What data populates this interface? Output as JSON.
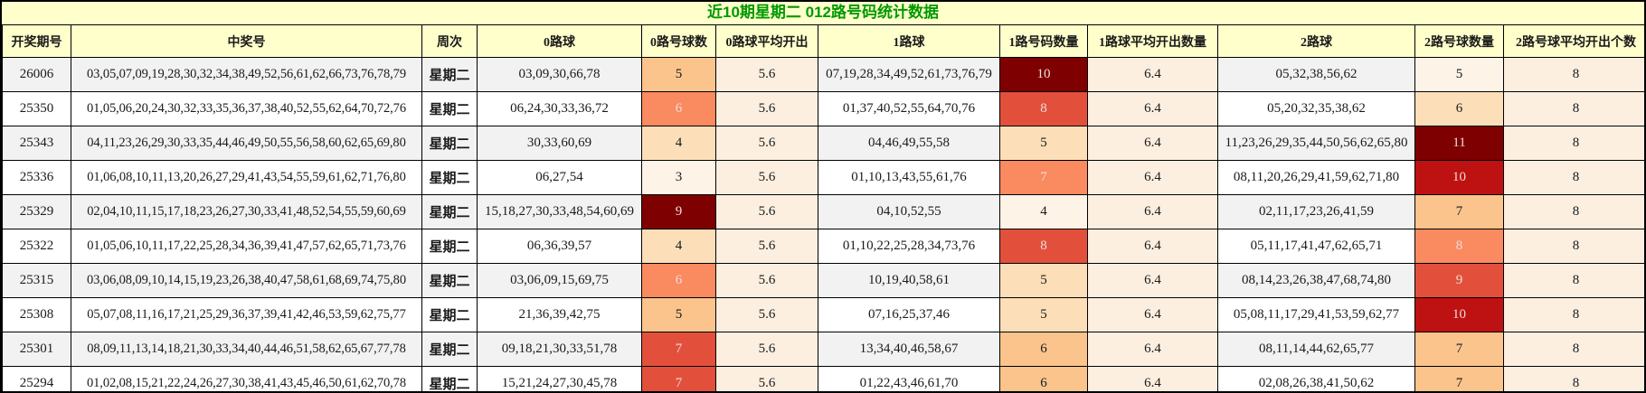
{
  "title": "近10期星期二 012路号码统计数据",
  "columns": [
    "开奖期号",
    "中奖号",
    "周次",
    "0路球",
    "0路号球数",
    "0路球平均开出",
    "1路球",
    "1路号码数量",
    "1路球平均开出数量",
    "2路球",
    "2路号球数量",
    "2路号球平均开出个数"
  ],
  "colors": {
    "title_color": "#009900",
    "header_bg": "#FFFFCC",
    "stripe_odd": "#F2F2F2",
    "stripe_even": "#FFFFFF",
    "avg_bg": "#FCEFE0",
    "border": "#000000",
    "heat_light_text": "#EDDEDA",
    "heat_dark_text": "#1A1A1A"
  },
  "rows": [
    {
      "period": "26006",
      "numbers": "03,05,07,09,19,28,30,32,34,38,49,52,56,61,62,66,73,76,78,79",
      "week": "星期二",
      "zero_balls": "03,09,30,66,78",
      "zero_count": "5",
      "zero_count_bg": "#FAC48C",
      "zero_count_fg": "#1A1A1A",
      "zero_avg": "5.6",
      "one_balls": "07,19,28,34,49,52,61,73,76,79",
      "one_count": "10",
      "one_count_bg": "#7F0000",
      "one_count_fg": "#EDDEDA",
      "one_avg": "6.4",
      "two_balls": "05,32,38,56,62",
      "two_count": "5",
      "two_count_bg": "#FDF3E7",
      "two_count_fg": "#1A1A1A",
      "two_avg": "8"
    },
    {
      "period": "25350",
      "numbers": "01,05,06,20,24,30,32,33,35,36,37,38,40,52,55,62,64,70,72,76",
      "week": "星期二",
      "zero_balls": "06,24,30,33,36,72",
      "zero_count": "6",
      "zero_count_bg": "#FA8A5F",
      "zero_count_fg": "#EDDEDA",
      "zero_avg": "5.6",
      "one_balls": "01,37,40,52,55,64,70,76",
      "one_count": "8",
      "one_count_bg": "#E2503C",
      "one_count_fg": "#EDDEDA",
      "one_avg": "6.4",
      "two_balls": "05,20,32,35,38,62",
      "two_count": "6",
      "two_count_bg": "#FCDFB8",
      "two_count_fg": "#1A1A1A",
      "two_avg": "8"
    },
    {
      "period": "25343",
      "numbers": "04,11,23,26,29,30,33,35,44,46,49,50,55,56,58,60,62,65,69,80",
      "week": "星期二",
      "zero_balls": "30,33,60,69",
      "zero_count": "4",
      "zero_count_bg": "#FCDFB8",
      "zero_count_fg": "#1A1A1A",
      "zero_avg": "5.6",
      "one_balls": "04,46,49,55,58",
      "one_count": "5",
      "one_count_bg": "#FCDFB8",
      "one_count_fg": "#1A1A1A",
      "one_avg": "6.4",
      "two_balls": "11,23,26,29,35,44,50,56,62,65,80",
      "two_count": "11",
      "two_count_bg": "#7F0000",
      "two_count_fg": "#EDDEDA",
      "two_avg": "8"
    },
    {
      "period": "25336",
      "numbers": "01,06,08,10,11,13,20,26,27,29,41,43,54,55,59,61,62,71,76,80",
      "week": "星期二",
      "zero_balls": "06,27,54",
      "zero_count": "3",
      "zero_count_bg": "#FDF3E7",
      "zero_count_fg": "#1A1A1A",
      "zero_avg": "5.6",
      "one_balls": "01,10,13,43,55,61,76",
      "one_count": "7",
      "one_count_bg": "#FA8A5F",
      "one_count_fg": "#EDDEDA",
      "one_avg": "6.4",
      "two_balls": "08,11,20,26,29,41,59,62,71,80",
      "two_count": "10",
      "two_count_bg": "#BE1111",
      "two_count_fg": "#EDDEDA",
      "two_avg": "8"
    },
    {
      "period": "25329",
      "numbers": "02,04,10,11,15,17,18,23,26,27,30,33,41,48,52,54,55,59,60,69",
      "week": "星期二",
      "zero_balls": "15,18,27,30,33,48,54,60,69",
      "zero_count": "9",
      "zero_count_bg": "#7F0000",
      "zero_count_fg": "#EDDEDA",
      "zero_avg": "5.6",
      "one_balls": "04,10,52,55",
      "one_count": "4",
      "one_count_bg": "#FDF3E7",
      "one_count_fg": "#1A1A1A",
      "one_avg": "6.4",
      "two_balls": "02,11,17,23,26,41,59",
      "two_count": "7",
      "two_count_bg": "#FAC48C",
      "two_count_fg": "#1A1A1A",
      "two_avg": "8"
    },
    {
      "period": "25322",
      "numbers": "01,05,06,10,11,17,22,25,28,34,36,39,41,47,57,62,65,71,73,76",
      "week": "星期二",
      "zero_balls": "06,36,39,57",
      "zero_count": "4",
      "zero_count_bg": "#FCDFB8",
      "zero_count_fg": "#1A1A1A",
      "zero_avg": "5.6",
      "one_balls": "01,10,22,25,28,34,73,76",
      "one_count": "8",
      "one_count_bg": "#E2503C",
      "one_count_fg": "#EDDEDA",
      "one_avg": "6.4",
      "two_balls": "05,11,17,41,47,62,65,71",
      "two_count": "8",
      "two_count_bg": "#FA8A5F",
      "two_count_fg": "#EDDEDA",
      "two_avg": "8"
    },
    {
      "period": "25315",
      "numbers": "03,06,08,09,10,14,15,19,23,26,38,40,47,58,61,68,69,74,75,80",
      "week": "星期二",
      "zero_balls": "03,06,09,15,69,75",
      "zero_count": "6",
      "zero_count_bg": "#FA8A5F",
      "zero_count_fg": "#EDDEDA",
      "zero_avg": "5.6",
      "one_balls": "10,19,40,58,61",
      "one_count": "5",
      "one_count_bg": "#FCDFB8",
      "one_count_fg": "#1A1A1A",
      "one_avg": "6.4",
      "two_balls": "08,14,23,26,38,47,68,74,80",
      "two_count": "9",
      "two_count_bg": "#E2503C",
      "two_count_fg": "#EDDEDA",
      "two_avg": "8"
    },
    {
      "period": "25308",
      "numbers": "05,07,08,11,16,17,21,25,29,36,37,39,41,42,46,53,59,62,75,77",
      "week": "星期二",
      "zero_balls": "21,36,39,42,75",
      "zero_count": "5",
      "zero_count_bg": "#FAC48C",
      "zero_count_fg": "#1A1A1A",
      "zero_avg": "5.6",
      "one_balls": "07,16,25,37,46",
      "one_count": "5",
      "one_count_bg": "#FCDFB8",
      "one_count_fg": "#1A1A1A",
      "one_avg": "6.4",
      "two_balls": "05,08,11,17,29,41,53,59,62,77",
      "two_count": "10",
      "two_count_bg": "#BE1111",
      "two_count_fg": "#EDDEDA",
      "two_avg": "8"
    },
    {
      "period": "25301",
      "numbers": "08,09,11,13,14,18,21,30,33,34,40,44,46,51,58,62,65,67,77,78",
      "week": "星期二",
      "zero_balls": "09,18,21,30,33,51,78",
      "zero_count": "7",
      "zero_count_bg": "#E2503C",
      "zero_count_fg": "#EDDEDA",
      "zero_avg": "5.6",
      "one_balls": "13,34,40,46,58,67",
      "one_count": "6",
      "one_count_bg": "#FAC48C",
      "one_count_fg": "#1A1A1A",
      "one_avg": "6.4",
      "two_balls": "08,11,14,44,62,65,77",
      "two_count": "7",
      "two_count_bg": "#FAC48C",
      "two_count_fg": "#1A1A1A",
      "two_avg": "8"
    },
    {
      "period": "25294",
      "numbers": "01,02,08,15,21,22,24,26,27,30,38,41,43,45,46,50,61,62,70,78",
      "week": "星期二",
      "zero_balls": "15,21,24,27,30,45,78",
      "zero_count": "7",
      "zero_count_bg": "#E2503C",
      "zero_count_fg": "#EDDEDA",
      "zero_avg": "5.6",
      "one_balls": "01,22,43,46,61,70",
      "one_count": "6",
      "one_count_bg": "#FAC48C",
      "one_count_fg": "#1A1A1A",
      "one_avg": "6.4",
      "two_balls": "02,08,26,38,41,50,62",
      "two_count": "7",
      "two_count_bg": "#FAC48C",
      "two_count_fg": "#1A1A1A",
      "two_avg": "8"
    }
  ]
}
